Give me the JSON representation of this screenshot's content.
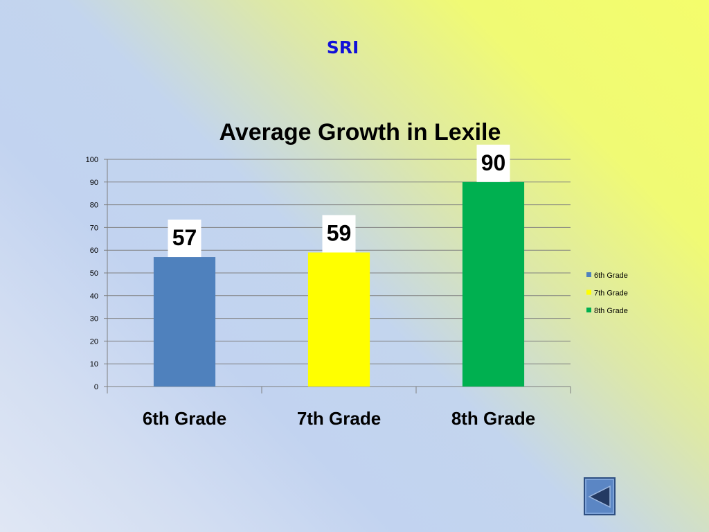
{
  "slide": {
    "title": "SRI"
  },
  "colors": {
    "title": "#1010d8",
    "series": [
      "#4f81bd",
      "#ffff00",
      "#00b050"
    ],
    "gridline": "#7f7f7f"
  },
  "navigation": {
    "back_icon": "left-triangle-icon"
  },
  "chart_data": {
    "type": "bar",
    "title": "Average Growth in Lexile",
    "categories": [
      "6th Grade",
      "7th Grade",
      "8th Grade"
    ],
    "values": [
      57,
      59,
      90
    ],
    "data_labels": [
      "57",
      "59",
      "90"
    ],
    "ylim": [
      0,
      100
    ],
    "yticks": [
      0,
      10,
      20,
      30,
      40,
      50,
      60,
      70,
      80,
      90,
      100
    ],
    "xlabel": "",
    "ylabel": "",
    "grid": true,
    "legend": {
      "position": "right",
      "entries": [
        "6th Grade",
        "7th Grade",
        "8th Grade"
      ]
    }
  }
}
